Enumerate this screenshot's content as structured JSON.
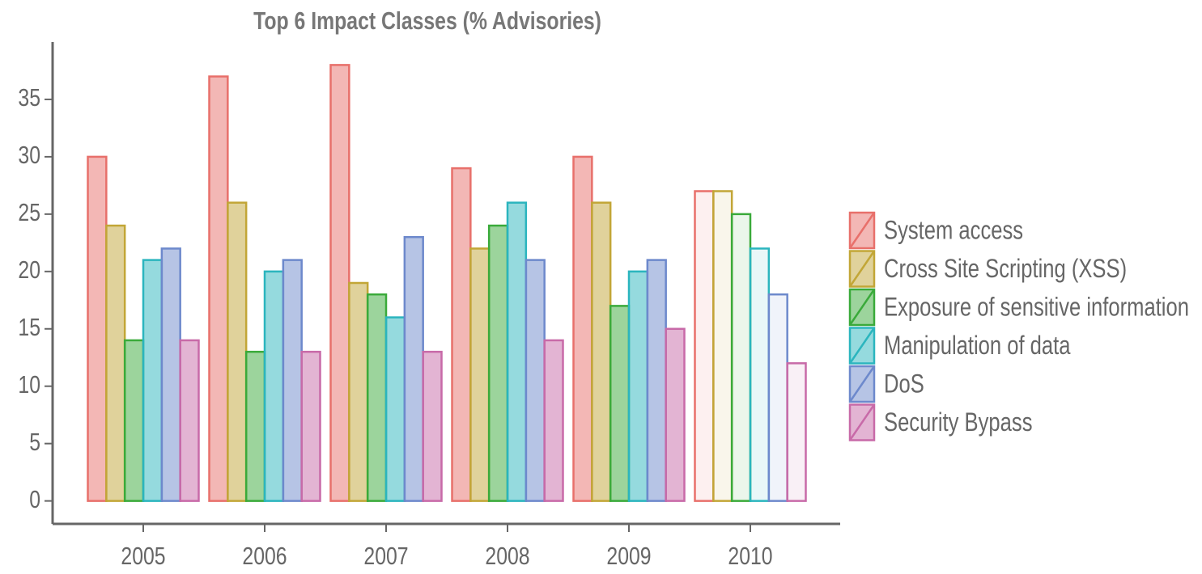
{
  "chart_data": {
    "type": "bar",
    "title": "Top 6 Impact Classes (% Advisories)",
    "categories": [
      "2005",
      "2006",
      "2007",
      "2008",
      "2009",
      "2010"
    ],
    "series": [
      {
        "name": "System access",
        "color": "#e8706b",
        "values": [
          30,
          37,
          38,
          29,
          30,
          27
        ]
      },
      {
        "name": "Cross Site Scripting (XSS)",
        "color": "#c2a637",
        "values": [
          24,
          26,
          19,
          22,
          26,
          27
        ]
      },
      {
        "name": "Exposure of sensitive information",
        "color": "#3aaa3a",
        "values": [
          14,
          13,
          18,
          24,
          17,
          25
        ]
      },
      {
        "name": "Manipulation of data",
        "color": "#2bb5be",
        "values": [
          21,
          20,
          16,
          26,
          20,
          22
        ]
      },
      {
        "name": "DoS",
        "color": "#6d89cc",
        "values": [
          22,
          21,
          23,
          21,
          21,
          18
        ]
      },
      {
        "name": "Security Bypass",
        "color": "#c86aa8",
        "values": [
          14,
          13,
          13,
          14,
          15,
          12
        ]
      }
    ],
    "faded_categories": [
      5
    ],
    "ylim": [
      -2,
      40
    ],
    "yticks": [
      0,
      5,
      10,
      15,
      20,
      25,
      30,
      35
    ],
    "legend": "right"
  }
}
